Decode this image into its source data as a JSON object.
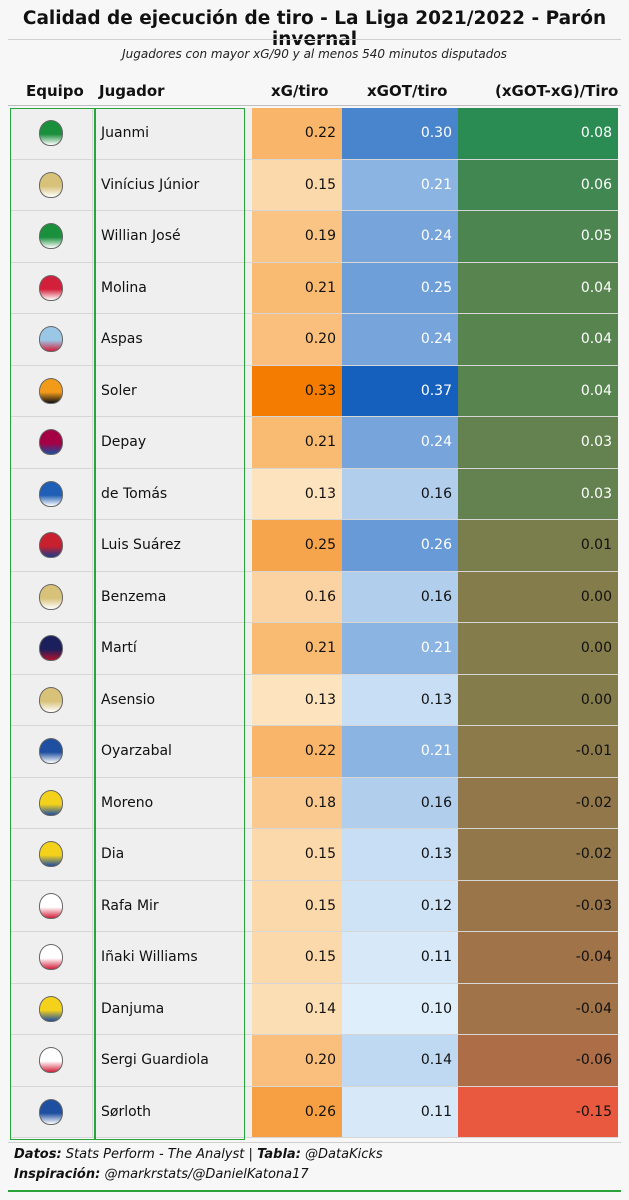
{
  "header": {
    "title": "Calidad de ejecución de tiro - La Liga 2021/2022 - Parón invernal",
    "subtitle": "Jugadores con mayor xG/90 y al menos 540 minutos disputados"
  },
  "columns": {
    "team": "Equipo",
    "player": "Jugador",
    "xg": "xG/tiro",
    "xgot": "xGOT/tiro",
    "diff": "(xGOT-xG)/Tiro"
  },
  "footer": {
    "data_label": "Datos:",
    "data_source": "Stats Perform - The Analyst",
    "sep": "|",
    "table_label": "Tabla:",
    "table_author": "@DataKicks",
    "inspiration_label": "Inspiración:",
    "inspiration": "@markrstats/@DanielKatona17"
  },
  "colors": {
    "frame": "#2aa33a",
    "diff_pos": "#2a8b53",
    "diff_neg": "#e9593f"
  },
  "chart_data": {
    "type": "table",
    "title": "Calidad de ejecución de tiro - La Liga 2021/2022 - Parón invernal",
    "columns": [
      "Equipo",
      "Jugador",
      "xG/tiro",
      "xGOT/tiro",
      "(xGOT-xG)/Tiro"
    ],
    "rows": [
      {
        "team": "betis-logo-icon",
        "player": "Juanmi",
        "xg": "0.22",
        "xgot": "0.30",
        "diff": "0.08"
      },
      {
        "team": "real-madrid-logo-icon",
        "player": "Vinícius Júnior",
        "xg": "0.15",
        "xgot": "0.21",
        "diff": "0.06"
      },
      {
        "team": "betis-logo-icon",
        "player": "Willian José",
        "xg": "0.19",
        "xgot": "0.24",
        "diff": "0.05"
      },
      {
        "team": "granada-logo-icon",
        "player": "Molina",
        "xg": "0.21",
        "xgot": "0.25",
        "diff": "0.04"
      },
      {
        "team": "celta-logo-icon",
        "player": "Aspas",
        "xg": "0.20",
        "xgot": "0.24",
        "diff": "0.04"
      },
      {
        "team": "valencia-logo-icon",
        "player": "Soler",
        "xg": "0.33",
        "xgot": "0.37",
        "diff": "0.04"
      },
      {
        "team": "barcelona-logo-icon",
        "player": "Depay",
        "xg": "0.21",
        "xgot": "0.24",
        "diff": "0.03"
      },
      {
        "team": "espanyol-logo-icon",
        "player": "de Tomás",
        "xg": "0.13",
        "xgot": "0.16",
        "diff": "0.03"
      },
      {
        "team": "atletico-logo-icon",
        "player": "Luis Suárez",
        "xg": "0.25",
        "xgot": "0.26",
        "diff": "0.01"
      },
      {
        "team": "real-madrid-logo-icon",
        "player": "Benzema",
        "xg": "0.16",
        "xgot": "0.16",
        "diff": "0.00"
      },
      {
        "team": "levante-logo-icon",
        "player": "Martí",
        "xg": "0.21",
        "xgot": "0.21",
        "diff": "0.00"
      },
      {
        "team": "real-madrid-logo-icon",
        "player": "Asensio",
        "xg": "0.13",
        "xgot": "0.13",
        "diff": "0.00"
      },
      {
        "team": "real-sociedad-logo-icon",
        "player": "Oyarzabal",
        "xg": "0.22",
        "xgot": "0.21",
        "diff": "-0.01"
      },
      {
        "team": "villarreal-logo-icon",
        "player": "Moreno",
        "xg": "0.18",
        "xgot": "0.16",
        "diff": "-0.02"
      },
      {
        "team": "villarreal-logo-icon",
        "player": "Dia",
        "xg": "0.15",
        "xgot": "0.13",
        "diff": "-0.02"
      },
      {
        "team": "sevilla-logo-icon",
        "player": "Rafa Mir",
        "xg": "0.15",
        "xgot": "0.12",
        "diff": "-0.03"
      },
      {
        "team": "athletic-logo-icon",
        "player": "Iñaki Williams",
        "xg": "0.15",
        "xgot": "0.11",
        "diff": "-0.04"
      },
      {
        "team": "villarreal-logo-icon",
        "player": "Danjuma",
        "xg": "0.14",
        "xgot": "0.10",
        "diff": "-0.04"
      },
      {
        "team": "rayo-logo-icon",
        "player": "Sergi Guardiola",
        "xg": "0.20",
        "xgot": "0.14",
        "diff": "-0.06"
      },
      {
        "team": "real-sociedad-logo-icon",
        "player": "Sørloth",
        "xg": "0.26",
        "xgot": "0.11",
        "diff": "-0.15"
      }
    ]
  }
}
